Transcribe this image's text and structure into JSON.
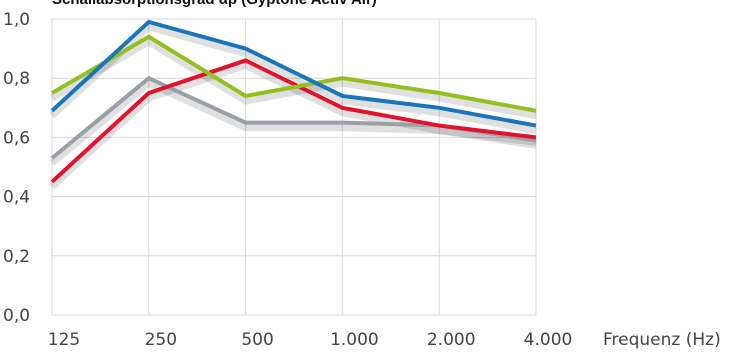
{
  "chart_data": {
    "type": "line",
    "title": "Schallabsorptionsgrad αp (Gyptone Activ'Air)",
    "xlabel": "Frequenz (Hz)",
    "ylabel": "",
    "categories": [
      "125",
      "250",
      "500",
      "1.000",
      "2.000",
      "4.000"
    ],
    "ylim": [
      0,
      1.0
    ],
    "yticks": [
      "0,0",
      "0,2",
      "0,4",
      "0,6",
      "0,8",
      "1,0"
    ],
    "ytick_values": [
      0,
      0.2,
      0.4,
      0.6,
      0.8,
      1.0
    ],
    "grid": true,
    "legend": "none",
    "series": [
      {
        "color": "#9aa0a6",
        "values": [
          0.53,
          0.8,
          0.65,
          0.65,
          0.64,
          0.59
        ]
      },
      {
        "color": "#e4112b",
        "values": [
          0.45,
          0.75,
          0.86,
          0.7,
          0.64,
          0.6
        ]
      },
      {
        "color": "#93c01f",
        "values": [
          0.75,
          0.94,
          0.74,
          0.8,
          0.75,
          0.69
        ]
      },
      {
        "color": "#1a76bb",
        "values": [
          0.69,
          0.99,
          0.9,
          0.74,
          0.7,
          0.64
        ]
      }
    ]
  }
}
